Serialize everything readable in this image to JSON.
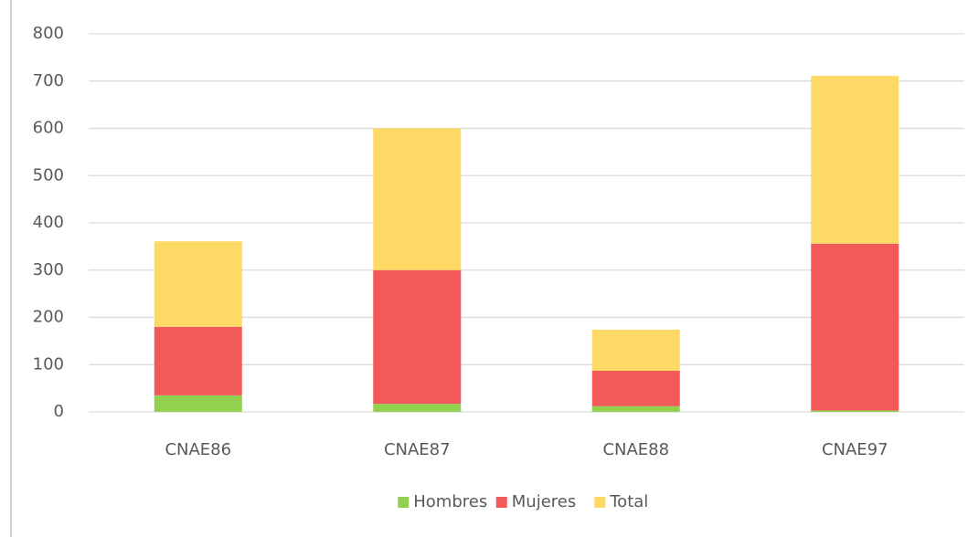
{
  "chart_data": {
    "type": "stacked_bar",
    "categories": [
      "CNAE86",
      "CNAE87",
      "CNAE88",
      "CNAE97"
    ],
    "series": [
      {
        "name": "Hombres",
        "color": "#92d050",
        "values": [
          35,
          17,
          12,
          3
        ]
      },
      {
        "name": "Mujeres",
        "color": "#f4595a",
        "values": [
          145,
          283,
          75,
          353
        ]
      },
      {
        "name": "Total",
        "color": "#ffd966",
        "values": [
          181,
          300,
          87,
          355
        ]
      }
    ],
    "ylim": [
      0,
      800
    ],
    "yticks": [
      0,
      100,
      200,
      300,
      400,
      500,
      600,
      700,
      800
    ],
    "grid": true,
    "legend": "bottom"
  }
}
